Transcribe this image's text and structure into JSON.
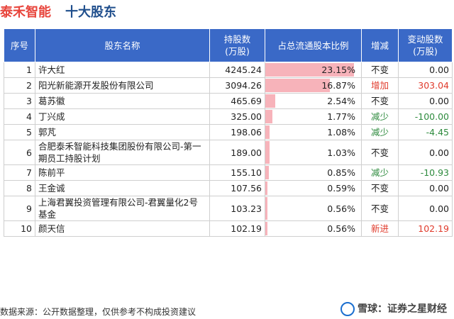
{
  "title": {
    "company": "泰禾智能",
    "subtitle": "十大股东"
  },
  "table": {
    "headers": [
      "序号",
      "股东名称",
      "持股数\n(万股)",
      "占总流通股本比例",
      "增减",
      "变动股数\n(万股)"
    ],
    "rows": [
      {
        "rank": "1",
        "name": "许大红",
        "shares": "4245.24",
        "ratio": "23.15%",
        "ratio_value": 23.15,
        "change": "不变",
        "change_type": "none",
        "delta": "0.00"
      },
      {
        "rank": "2",
        "name": "阳光新能源开发股份有限公司",
        "shares": "3094.26",
        "ratio": "16.87%",
        "ratio_value": 16.87,
        "change": "增加",
        "change_type": "inc",
        "delta": "303.04"
      },
      {
        "rank": "3",
        "name": "葛苏徽",
        "shares": "465.69",
        "ratio": "2.54%",
        "ratio_value": 2.54,
        "change": "不变",
        "change_type": "none",
        "delta": "0.00"
      },
      {
        "rank": "4",
        "name": "丁兴成",
        "shares": "325.00",
        "ratio": "1.77%",
        "ratio_value": 1.77,
        "change": "减少",
        "change_type": "dec",
        "delta": "-100.00"
      },
      {
        "rank": "5",
        "name": "郭芃",
        "shares": "198.06",
        "ratio": "1.08%",
        "ratio_value": 1.08,
        "change": "减少",
        "change_type": "dec",
        "delta": "-4.45"
      },
      {
        "rank": "6",
        "name": "合肥泰禾智能科技集团股份有限公司-第一期员工持股计划",
        "shares": "189.00",
        "ratio": "1.03%",
        "ratio_value": 1.03,
        "change": "不变",
        "change_type": "none",
        "delta": "0.00"
      },
      {
        "rank": "7",
        "name": "陈前平",
        "shares": "155.10",
        "ratio": "0.85%",
        "ratio_value": 0.85,
        "change": "减少",
        "change_type": "dec",
        "delta": "-10.93"
      },
      {
        "rank": "8",
        "name": "王金诚",
        "shares": "107.56",
        "ratio": "0.59%",
        "ratio_value": 0.59,
        "change": "不变",
        "change_type": "none",
        "delta": "0.00"
      },
      {
        "rank": "9",
        "name": "上海君翼投资管理有限公司-君翼量化2号基金",
        "shares": "103.23",
        "ratio": "0.56%",
        "ratio_value": 0.56,
        "change": "不变",
        "change_type": "none",
        "delta": "0.00"
      },
      {
        "rank": "10",
        "name": "颜天信",
        "shares": "102.19",
        "ratio": "0.56%",
        "ratio_value": 0.56,
        "change": "新进",
        "change_type": "new",
        "delta": "102.19"
      }
    ]
  },
  "footer": {
    "source": "数据来源：公开数据整理，仅供参考不构成投资建议",
    "brand": "雪球：证券之星财经"
  },
  "colors": {
    "header_bg": "#3a69c7",
    "bar": "#f7b3ba",
    "inc": "#e03b2c",
    "dec": "#2e8b3e",
    "title_red": "#e8453c",
    "title_blue": "#1f4e8c"
  }
}
